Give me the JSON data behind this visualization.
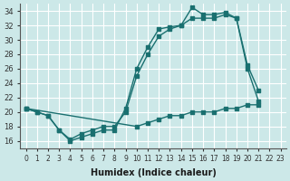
{
  "xlabel": "Humidex (Indice chaleur)",
  "ylabel": "",
  "background_color": "#cce8e8",
  "grid_color": "#ffffff",
  "line_color": "#1a7070",
  "x": [
    0,
    1,
    2,
    3,
    4,
    5,
    6,
    7,
    8,
    9,
    10,
    11,
    12,
    13,
    14,
    15,
    16,
    17,
    18,
    19,
    20,
    21,
    22,
    23
  ],
  "line1": [
    20.5,
    20.0,
    19.5,
    17.5,
    16.0,
    16.5,
    17.0,
    17.5,
    17.5,
    20.5,
    26.0,
    29.0,
    31.5,
    31.8,
    32.0,
    34.5,
    33.5,
    33.5,
    33.8,
    33.0,
    26.5,
    23.0,
    null,
    null
  ],
  "line2": [
    20.5,
    20.0,
    19.5,
    17.5,
    16.2,
    17.0,
    17.5,
    18.0,
    18.0,
    20.0,
    25.0,
    28.0,
    30.5,
    31.5,
    32.0,
    33.0,
    33.0,
    33.0,
    33.5,
    33.0,
    26.0,
    21.5,
    null,
    null
  ],
  "line3": [
    20.5,
    null,
    null,
    null,
    null,
    null,
    null,
    null,
    null,
    null,
    18.0,
    18.5,
    19.0,
    19.5,
    19.5,
    20.0,
    20.0,
    20.0,
    20.5,
    20.5,
    21.0,
    21.0,
    null,
    null
  ],
  "ylim": [
    15,
    35
  ],
  "yticks": [
    16,
    18,
    20,
    22,
    24,
    26,
    28,
    30,
    32,
    34
  ],
  "xlim": [
    -0.5,
    23.5
  ]
}
